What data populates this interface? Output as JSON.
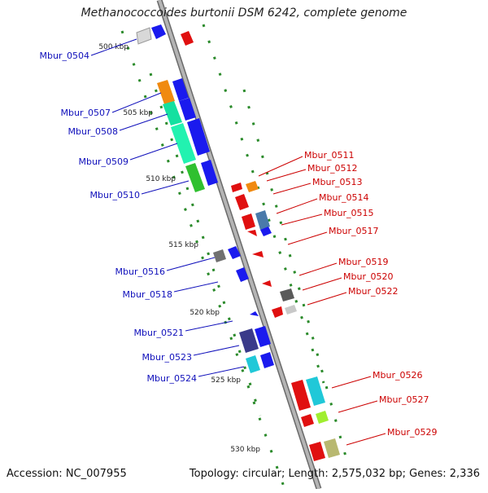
{
  "title": "Methanococcoides burtonii DSM 6242, complete genome",
  "accession": "Accession: NC_007955",
  "summary": "Topology: circular; Length: 2,575,032 bp; Genes: 2,336",
  "colors": {
    "backbone": "#a8a8a8",
    "backbone_edge": "#6a6a6a",
    "forward_label": "#1010bb",
    "reverse_label": "#cc0000",
    "tick_dots": "#2a8a2a"
  },
  "ruler_labels": [
    "500 kbp",
    "505 kbp",
    "510 kbp",
    "515 kbp",
    "520 kbp",
    "525 kbp",
    "530 kbp"
  ],
  "gene_labels_forward": [
    "Mbur_0504",
    "Mbur_0507",
    "Mbur_0508",
    "Mbur_0509",
    "Mbur_0510",
    "Mbur_0516",
    "Mbur_0518",
    "Mbur_0521",
    "Mbur_0523",
    "Mbur_0524"
  ],
  "gene_labels_reverse": [
    "Mbur_0511",
    "Mbur_0512",
    "Mbur_0513",
    "Mbur_0514",
    "Mbur_0515",
    "Mbur_0517",
    "Mbur_0519",
    "Mbur_0520",
    "Mbur_0522",
    "Mbur_0526",
    "Mbur_0527",
    "Mbur_0529"
  ]
}
